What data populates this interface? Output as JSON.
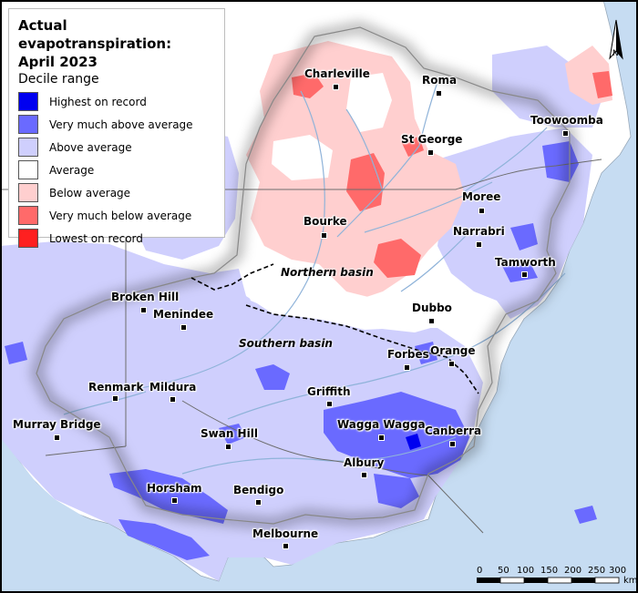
{
  "legend": {
    "title": "Actual evapotranspiration:",
    "period": "April 2023",
    "subtitle": "Decile range",
    "items": [
      {
        "label": "Highest on record",
        "color": "#0000f0"
      },
      {
        "label": "Very much above average",
        "color": "#6a6aff"
      },
      {
        "label": "Above average",
        "color": "#cfcffd"
      },
      {
        "label": "Average",
        "color": "#ffffff"
      },
      {
        "label": "Below average",
        "color": "#ffcfcf"
      },
      {
        "label": "Very much below average",
        "color": "#ff6a6a"
      },
      {
        "label": "Lowest on record",
        "color": "#ff2020"
      }
    ]
  },
  "cities": {
    "charleville": "Charleville",
    "roma": "Roma",
    "toowoomba": "Toowoomba",
    "st_george": "St George",
    "moree": "Moree",
    "bourke": "Bourke",
    "narrabri": "Narrabri",
    "tamworth": "Tamworth",
    "broken_hill": "Broken Hill",
    "menindee": "Menindee",
    "dubbo": "Dubbo",
    "forbes": "Forbes",
    "orange": "Orange",
    "renmark": "Renmark",
    "mildura": "Mildura",
    "griffith": "Griffith",
    "murray_bridge": "Murray Bridge",
    "swan_hill": "Swan Hill",
    "wagga_wagga": "Wagga Wagga",
    "canberra": "Canberra",
    "albury": "Albury",
    "horsham": "Horsham",
    "bendigo": "Bendigo",
    "melbourne": "Melbourne"
  },
  "basins": {
    "northern": "Northern basin",
    "southern": "Southern basin"
  },
  "scale": {
    "ticks": [
      "0",
      "50",
      "100",
      "150",
      "200",
      "250",
      "300"
    ],
    "unit": "km"
  },
  "north_label": "N",
  "colors": {
    "sea": "#c6dcf2",
    "land": "#ffffff",
    "river": "#8fb3d9",
    "border": "#6c6c6c"
  }
}
